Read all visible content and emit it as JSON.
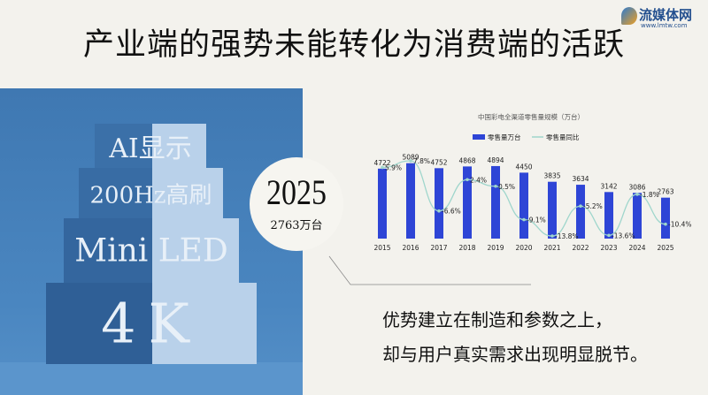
{
  "title": "产业端的强势未能转化为消费端的活跃",
  "watermark": {
    "name": "流媒体网",
    "url": "www.lmtw.com"
  },
  "blocks": [
    "AI显示",
    "200Hz高刷",
    "Mini LED",
    "4K"
  ],
  "highlight": {
    "year": "2025",
    "value": "2763万台"
  },
  "conclusion": [
    "优势建立在制造和参数之上，",
    "却与用户真实需求出现明显脱节。"
  ],
  "colors": {
    "bar": "#2e45d6",
    "line": "#9fd6cc",
    "panel": "#4a86c0"
  },
  "chart_data": {
    "type": "bar",
    "title": "中国彩电全渠道零售量规模（万台）",
    "categories": [
      "2015",
      "2016",
      "2017",
      "2018",
      "2019",
      "2020",
      "2021",
      "2022",
      "2023",
      "2024",
      "2025"
    ],
    "series": [
      {
        "name": "零售量万台",
        "type": "bar",
        "values": [
          4722,
          5089,
          4752,
          4868,
          4894,
          4450,
          3835,
          3634,
          3142,
          3086,
          2763
        ]
      },
      {
        "name": "零售量同比",
        "type": "line",
        "values": [
          5.9,
          7.8,
          -6.6,
          2.4,
          0.5,
          -9.1,
          -13.8,
          -5.2,
          -13.6,
          -1.8,
          -10.4
        ],
        "labels": [
          "5.9%",
          "7.8%",
          "-6.6%",
          "2.4%",
          "0.5%",
          "-9.1%",
          "-13.8%",
          "-5.2%",
          "-13.6%",
          "-1.8%",
          "-10.4%"
        ]
      }
    ],
    "legend": "top",
    "grid": false
  }
}
